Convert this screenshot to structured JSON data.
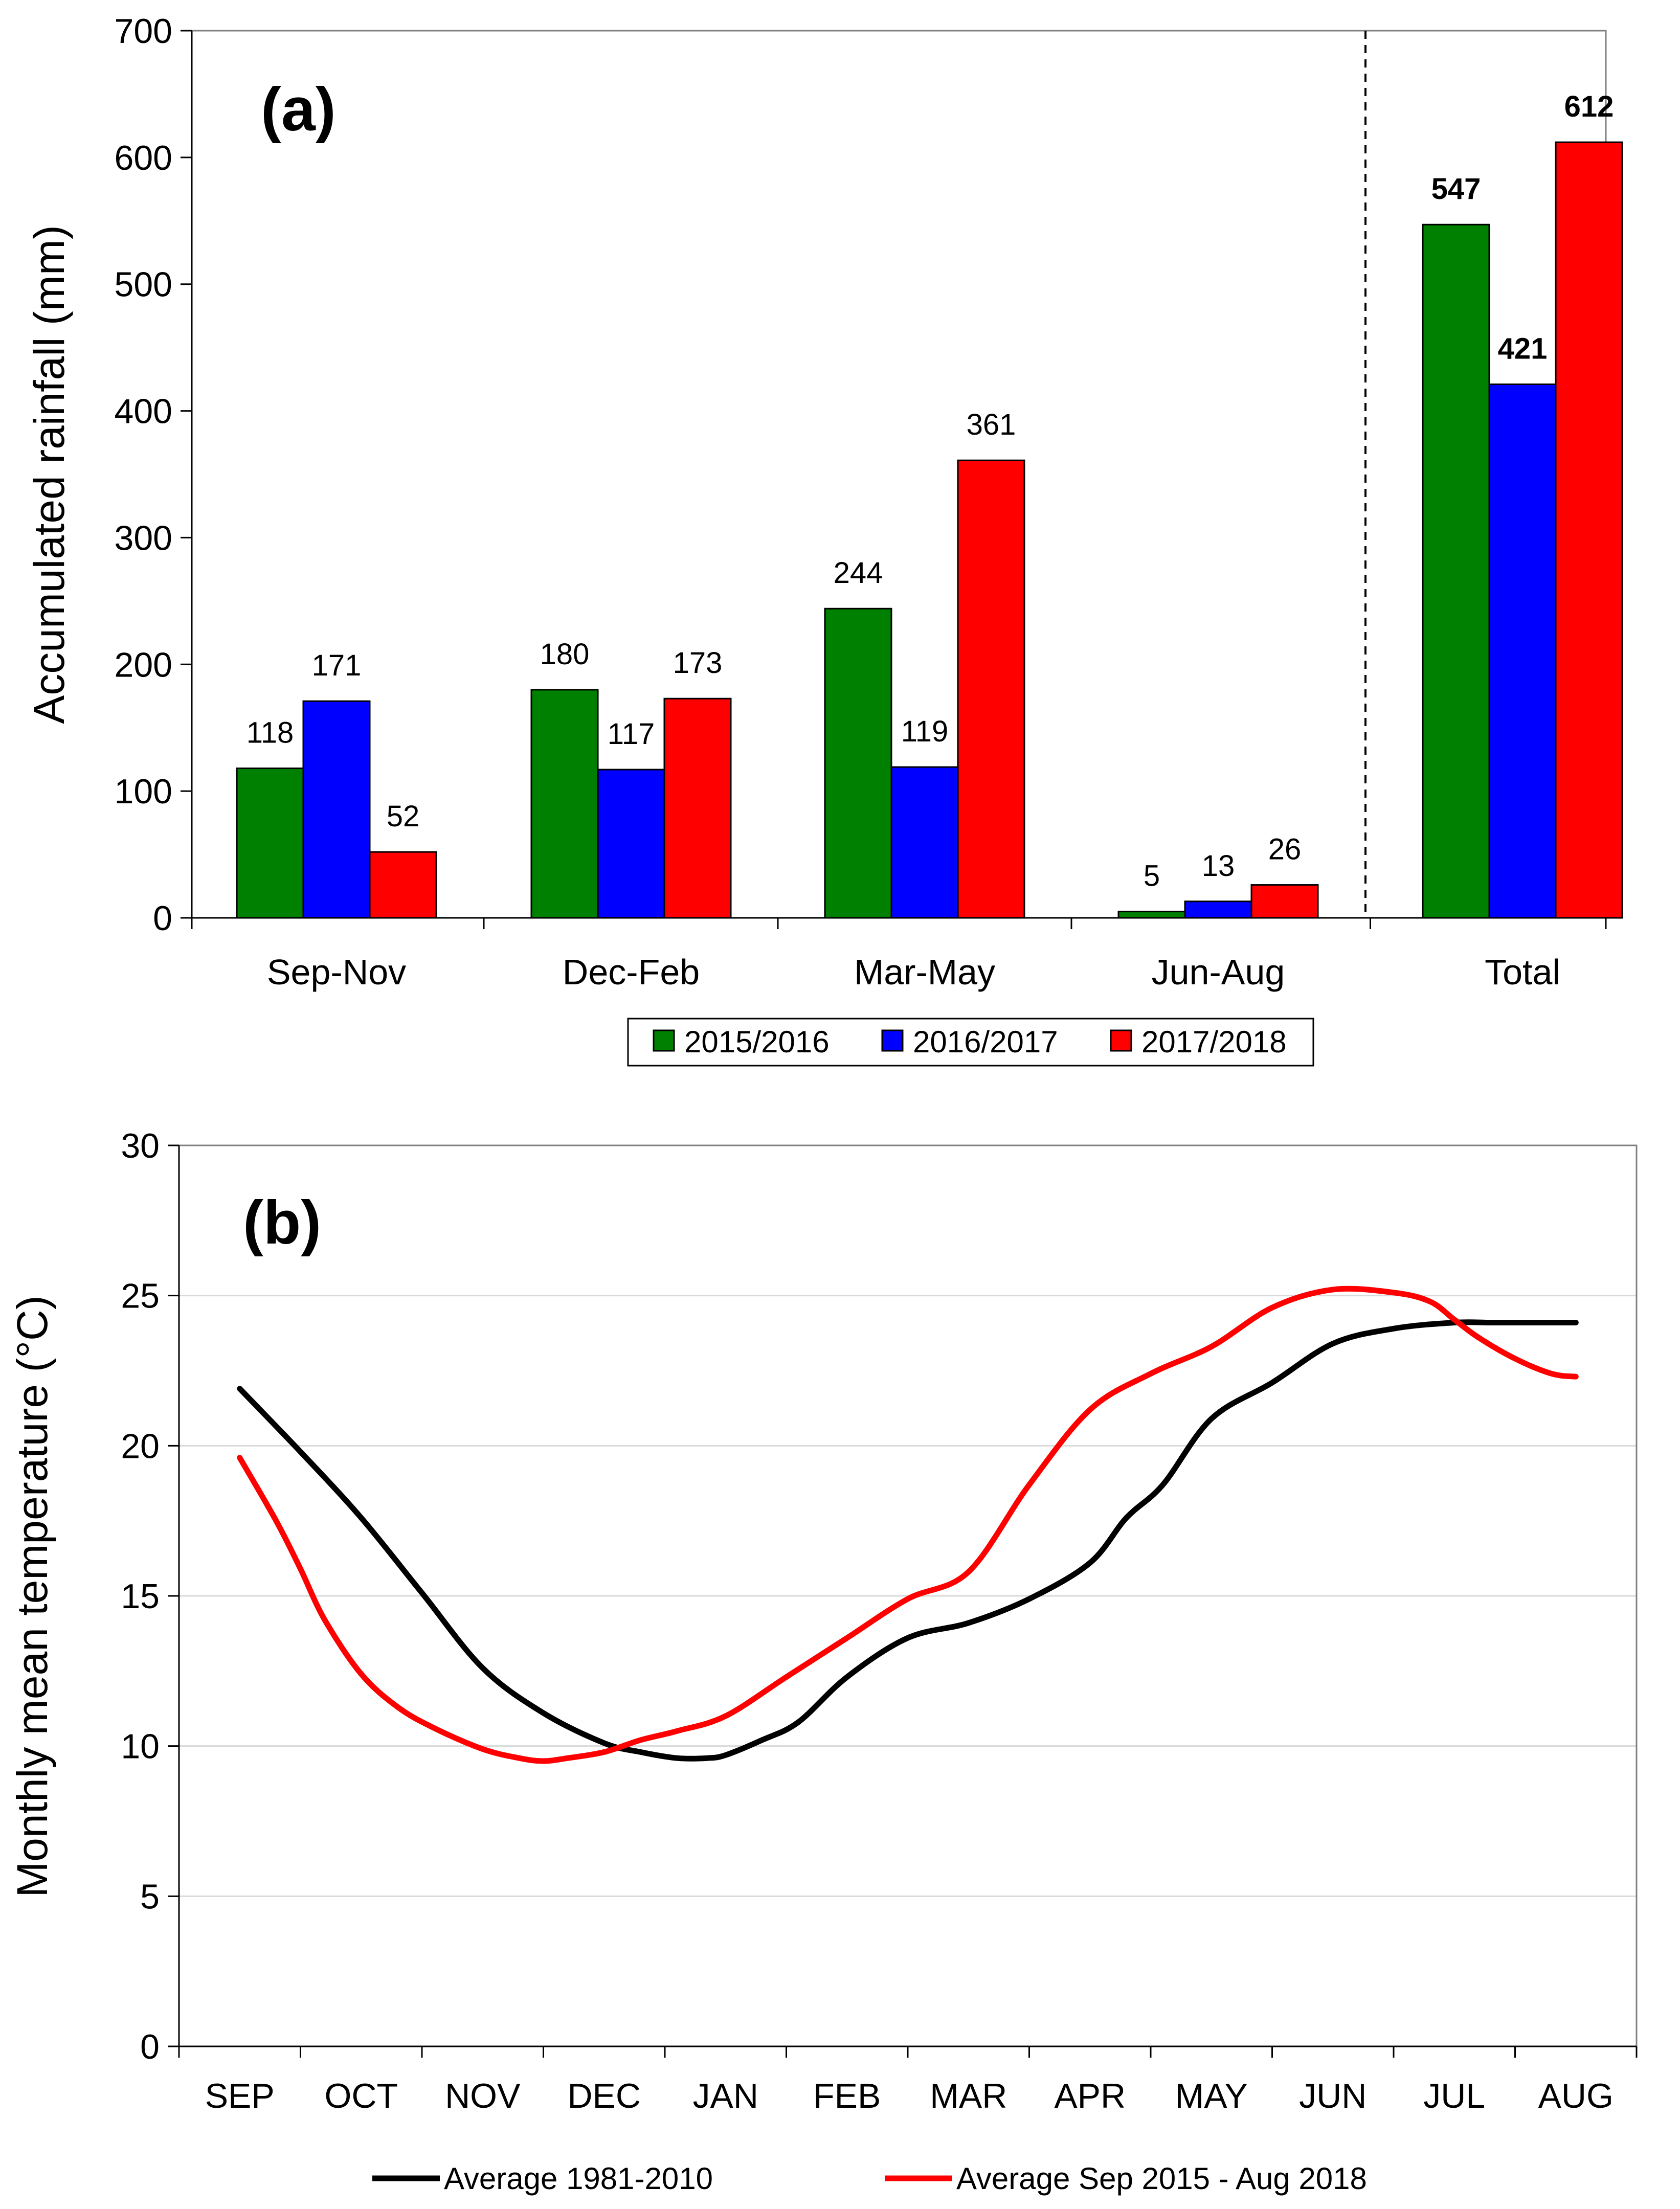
{
  "colors": {
    "s2015": "#008000",
    "s2016": "#0000ff",
    "s2017": "#ff0000",
    "avg1981": "#000000",
    "avgRecent": "#ff0000",
    "grid": "#d9d9d9"
  },
  "chart_data": [
    {
      "type": "bar",
      "panel_label": "(a)",
      "title": "",
      "xlabel": "",
      "ylabel": "Accumulated rainfall (mm)",
      "ylim": [
        0,
        700
      ],
      "yticks": [
        "0",
        "100",
        "200",
        "300",
        "400",
        "500",
        "600",
        "700"
      ],
      "categories": [
        "Sep-Nov",
        "Dec-Feb",
        "Mar-May",
        "Jun-Aug",
        "Total"
      ],
      "series": [
        {
          "name": "2015/2016",
          "color": "#008000",
          "values": [
            118,
            180,
            244,
            5,
            547
          ],
          "labels": [
            "118",
            "180",
            "244",
            "5",
            "547"
          ]
        },
        {
          "name": "2016/2017",
          "color": "#0000ff",
          "values": [
            171,
            117,
            119,
            13,
            421
          ],
          "labels": [
            "171",
            "117",
            "119",
            "13",
            "421"
          ]
        },
        {
          "name": "2017/2018",
          "color": "#ff0000",
          "values": [
            52,
            173,
            361,
            26,
            612
          ],
          "labels": [
            "52",
            "173",
            "361",
            "26",
            "612"
          ]
        }
      ],
      "separator": "dashed line between Jun-Aug and Total",
      "legend_position": "bottom-right"
    },
    {
      "type": "line",
      "panel_label": "(b)",
      "title": "",
      "xlabel": "",
      "ylabel": "Monthly mean temperature (°C)",
      "ylim": [
        0,
        30
      ],
      "yticks": [
        "0",
        "5",
        "10",
        "15",
        "20",
        "25",
        "30"
      ],
      "grid": true,
      "categories": [
        "SEP",
        "OCT",
        "NOV",
        "DEC",
        "JAN",
        "FEB",
        "MAR",
        "APR",
        "MAY",
        "JUN",
        "JUL",
        "AUG"
      ],
      "series": [
        {
          "name": "Average 1981-2010",
          "color": "#000000",
          "x": [
            0,
            0.5,
            1,
            1.5,
            2,
            2.5,
            3,
            3.3,
            3.6,
            3.85,
            4,
            4.3,
            4.6,
            5,
            5.5,
            6,
            6.5,
            7,
            7.3,
            7.6,
            8,
            8.5,
            9,
            9.5,
            10,
            10.3,
            10.6,
            11
          ],
          "y": [
            21.9,
            19.8,
            17.6,
            15.1,
            12.6,
            11.1,
            10.1,
            9.8,
            9.6,
            9.6,
            9.7,
            10.2,
            10.8,
            12.3,
            13.6,
            14.1,
            14.9,
            16.1,
            17.6,
            18.7,
            20.9,
            22.1,
            23.4,
            23.9,
            24.1,
            24.1,
            24.1,
            24.1
          ]
        },
        {
          "name": "Average Sep 2015 - Aug 2018",
          "color": "#ff0000",
          "x": [
            0,
            0.3,
            0.5,
            0.7,
            1,
            1.3,
            1.6,
            2,
            2.3,
            2.5,
            2.7,
            3,
            3.3,
            3.6,
            4,
            4.5,
            5,
            5.5,
            6,
            6.5,
            7,
            7.5,
            8,
            8.5,
            9,
            9.5,
            9.8,
            10,
            10.2,
            10.5,
            10.8,
            11
          ],
          "y": [
            19.6,
            17.5,
            15.9,
            14.2,
            12.4,
            11.3,
            10.6,
            9.9,
            9.6,
            9.5,
            9.6,
            9.8,
            10.2,
            10.5,
            11.0,
            12.3,
            13.6,
            14.9,
            15.8,
            18.7,
            21.2,
            22.4,
            23.3,
            24.6,
            25.2,
            25.1,
            24.8,
            24.2,
            23.6,
            22.9,
            22.4,
            22.3
          ]
        }
      ],
      "legend_position": "bottom"
    }
  ]
}
